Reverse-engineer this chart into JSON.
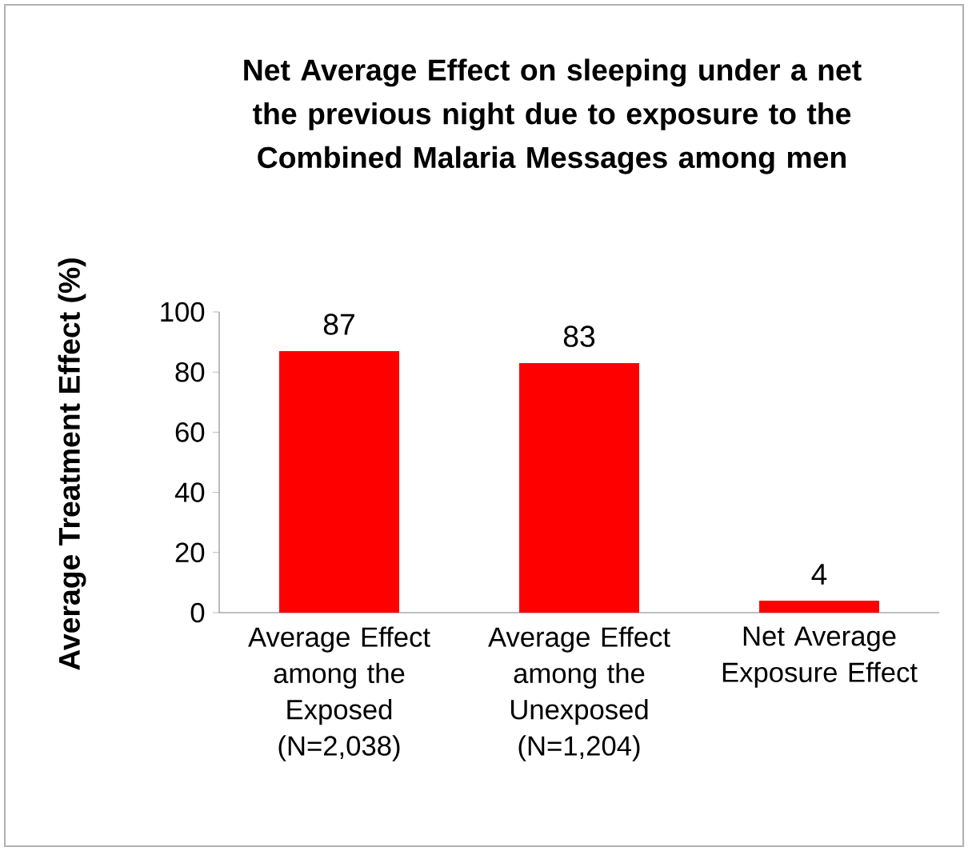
{
  "chart_data": {
    "type": "bar",
    "title": "Net Average Effect on sleeping under a net the previous night due to exposure to the Combined Malaria Messages among men",
    "ylabel": "Average Treatment Effect (%)",
    "categories": [
      "Average Effect among the Exposed (N=2,038)",
      "Average Effect among the Unexposed (N=1,204)",
      "Net Average Exposure Effect"
    ],
    "values": [
      87,
      83,
      4
    ],
    "color": "#ff0000",
    "ylim": [
      0,
      100
    ],
    "yticks": [
      0,
      20,
      40,
      60,
      80,
      100
    ],
    "data_labels": true
  }
}
